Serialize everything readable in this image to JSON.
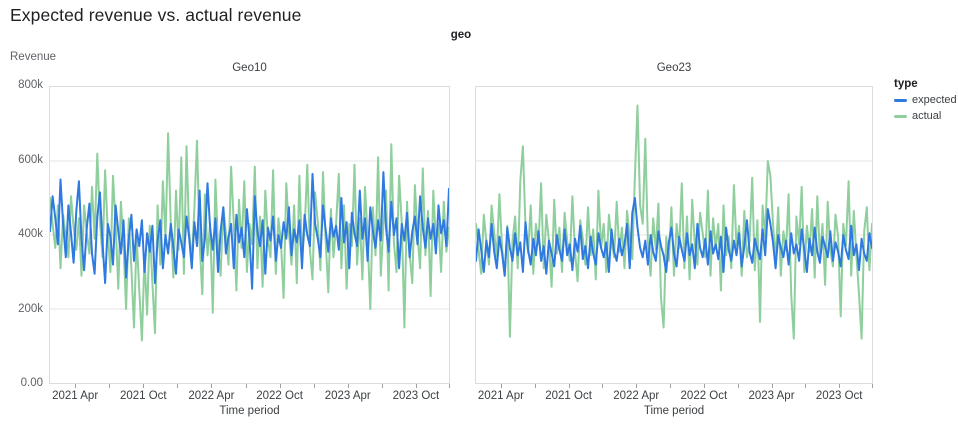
{
  "title": "Expected revenue vs. actual revenue",
  "chart_data": {
    "type": "line",
    "facet_field": "geo",
    "y": {
      "label": "Revenue",
      "unit": "thousands",
      "domain_k": [
        0,
        800
      ],
      "ticks": [
        {
          "label": "800k",
          "value_k": 800
        },
        {
          "label": "600k",
          "value_k": 600
        },
        {
          "label": "400k",
          "value_k": 400
        },
        {
          "label": "200k",
          "value_k": 200
        },
        {
          "label": "0.00",
          "value_k": 0
        }
      ]
    },
    "x": {
      "label": "Time period",
      "granularity": "weekly",
      "domain_months": [
        0.7,
        36
      ],
      "minor_tick_months": [
        3,
        6,
        9,
        12,
        15,
        18,
        21,
        24,
        27,
        30,
        33,
        36
      ],
      "labeled_ticks": [
        {
          "month": 3,
          "label": "2021 Apr"
        },
        {
          "month": 9,
          "label": "2021 Oct"
        },
        {
          "month": 15,
          "label": "2022 Apr"
        },
        {
          "month": 21,
          "label": "2022 Oct"
        },
        {
          "month": 27,
          "label": "2023 Apr"
        },
        {
          "month": 33,
          "label": "2023 Oct"
        }
      ]
    },
    "legend": {
      "title": "type",
      "items": [
        {
          "label": "expected",
          "color": "#2f7ae0"
        },
        {
          "label": "actual",
          "color": "#8fce9d"
        }
      ]
    },
    "facets": [
      {
        "name": "Geo10",
        "series": [
          {
            "name": "expected",
            "values_k": [
              410,
              505,
              445,
              375,
              550,
              430,
              340,
              480,
              405,
              325,
              465,
              545,
              390,
              305,
              420,
              485,
              350,
              295,
              450,
              515,
              380,
              270,
              430,
              395,
              320,
              480,
              410,
              350,
              440,
              285,
              390,
              455,
              330,
              415,
              370,
              440,
              300,
              405,
              355,
              425,
              270,
              385,
              440,
              310,
              400,
              350,
              430,
              365,
              295,
              415,
              380,
              340,
              450,
              395,
              310,
              435,
              370,
              520,
              330,
              390,
              540,
              420,
              360,
              445,
              300,
              410,
              475,
              350,
              395,
              430,
              310,
              455,
              380,
              420,
              340,
              470,
              390,
              255,
              505,
              410,
              370,
              440,
              295,
              420,
              385,
              450,
              330,
              400,
              365,
              435,
              390,
              475,
              345,
              415,
              380,
              440,
              310,
              455,
              400,
              370,
              565,
              430,
              390,
              340,
              480,
              415,
              355,
              445,
              395,
              425,
              360,
              500,
              380,
              435,
              310,
              460,
              405,
              370,
              520,
              390,
              445,
              330,
              475,
              410,
              365,
              440,
              385,
              570,
              420,
              355,
              490,
              400,
              445,
              310,
              430,
              385,
              460,
              340,
              410,
              450,
              375,
              505,
              420,
              365,
              445,
              390,
              430,
              350,
              480,
              405,
              440,
              370,
              525
            ]
          },
          {
            "name": "actual",
            "values_k": [
              500,
              430,
              365,
              480,
              310,
              455,
              395,
              340,
              505,
              420,
              360,
              445,
              290,
              480,
              405,
              350,
              530,
              390,
              620,
              440,
              340,
              575,
              410,
              300,
              560,
              430,
              255,
              490,
              375,
              200,
              445,
              310,
              150,
              395,
              250,
              115,
              340,
              185,
              425,
              270,
              135,
              480,
              320,
              545,
              390,
              675,
              430,
              285,
              520,
              360,
              610,
              295,
              640,
              410,
              330,
              475,
              655,
              380,
              240,
              510,
              345,
              430,
              190,
              550,
              370,
              290,
              475,
              405,
              320,
              585,
              430,
              250,
              495,
              365,
              545,
              300,
              430,
              375,
              585,
              310,
              450,
              260,
              520,
              390,
              340,
              575,
              295,
              445,
              380,
              230,
              540,
              410,
              320,
              480,
              270,
              560,
              345,
              415,
              590,
              360,
              280,
              515,
              435,
              305,
              570,
              390,
              245,
              470,
              340,
              430,
              565,
              310,
              480,
              255,
              430,
              370,
              590,
              320,
              445,
              280,
              530,
              395,
              200,
              475,
              345,
              610,
              290,
              430,
              520,
              250,
              645,
              380,
              300,
              560,
              430,
              150,
              490,
              350,
              270,
              535,
              400,
              310,
              580,
              345,
              465,
              235,
              520,
              380,
              430,
              300,
              490,
              355,
              420
            ]
          }
        ]
      },
      {
        "name": "Geo23",
        "series": [
          {
            "name": "expected",
            "values_k": [
              330,
              415,
              360,
              300,
              385,
              340,
              430,
              355,
              310,
              395,
              350,
              290,
              420,
              365,
              330,
              405,
              345,
              380,
              300,
              435,
              360,
              320,
              390,
              345,
              410,
              330,
              370,
              295,
              385,
              350,
              315,
              400,
              360,
              330,
              415,
              345,
              375,
              305,
              390,
              355,
              425,
              335,
              370,
              310,
              395,
              350,
              320,
              405,
              365,
              340,
              380,
              300,
              415,
              355,
              330,
              390,
              345,
              375,
              430,
              310,
              460,
              500,
              420,
              365,
              340,
              385,
              320,
              400,
              355,
              330,
              410,
              370,
              345,
              300,
              380,
              420,
              350,
              315,
              395,
              360,
              330,
              405,
              345,
              375,
              310,
              430,
              365,
              340,
              390,
              320,
              410,
              350,
              375,
              335,
              395,
              300,
              420,
              360,
              330,
              385,
              345,
              405,
              315,
              370,
              440,
              355,
              325,
              390,
              360,
              335,
              415,
              345,
              470,
              430,
              380,
              310,
              400,
              365,
              340,
              385,
              320,
              405,
              350,
              375,
              330,
              415,
              360,
              300,
              390,
              345,
              420,
              355,
              325,
              395,
              370,
              340,
              410,
              330,
              380,
              355,
              315,
              400,
              360,
              335,
              425,
              345,
              375,
              305,
              390,
              350,
              330,
              405,
              365
            ]
          },
          {
            "name": "actual",
            "values_k": [
              430,
              360,
              295,
              455,
              380,
              320,
              480,
              405,
              340,
              510,
              365,
              290,
              425,
              125,
              385,
              450,
              310,
              545,
              640,
              420,
              350,
              480,
              295,
              430,
              375,
              540,
              310,
              455,
              385,
              260,
              495,
              350,
              420,
              300,
              460,
              385,
              330,
              505,
              355,
              275,
              440,
              390,
              320,
              475,
              345,
              415,
              280,
              520,
              365,
              430,
              300,
              455,
              385,
              340,
              490,
              355,
              420,
              310,
              465,
              390,
              335,
              560,
              750,
              480,
              430,
              660,
              380,
              290,
              445,
              360,
              485,
              230,
              150,
              395,
              330,
              475,
              290,
              430,
              365,
              540,
              310,
              450,
              280,
              495,
              375,
              320,
              460,
              405,
              340,
              520,
              290,
              445,
              365,
              430,
              250,
              480,
              345,
              395,
              310,
              535,
              370,
              425,
              290,
              465,
              340,
              385,
              555,
              305,
              440,
              165,
              480,
              395,
              600,
              560,
              430,
              330,
              475,
              290,
              410,
              360,
              510,
              240,
              120,
              450,
              375,
              530,
              300,
              425,
              355,
              470,
              285,
              505,
              340,
              430,
              265,
              490,
              360,
              315,
              455,
              395,
              180,
              430,
              370,
              545,
              290,
              465,
              345,
              240,
              120,
              410,
              475,
              305,
              430
            ]
          }
        ]
      }
    ],
    "style": {
      "grid_color": "#e4e4e4",
      "border_color": "#dadce0",
      "line_width": 2
    }
  }
}
